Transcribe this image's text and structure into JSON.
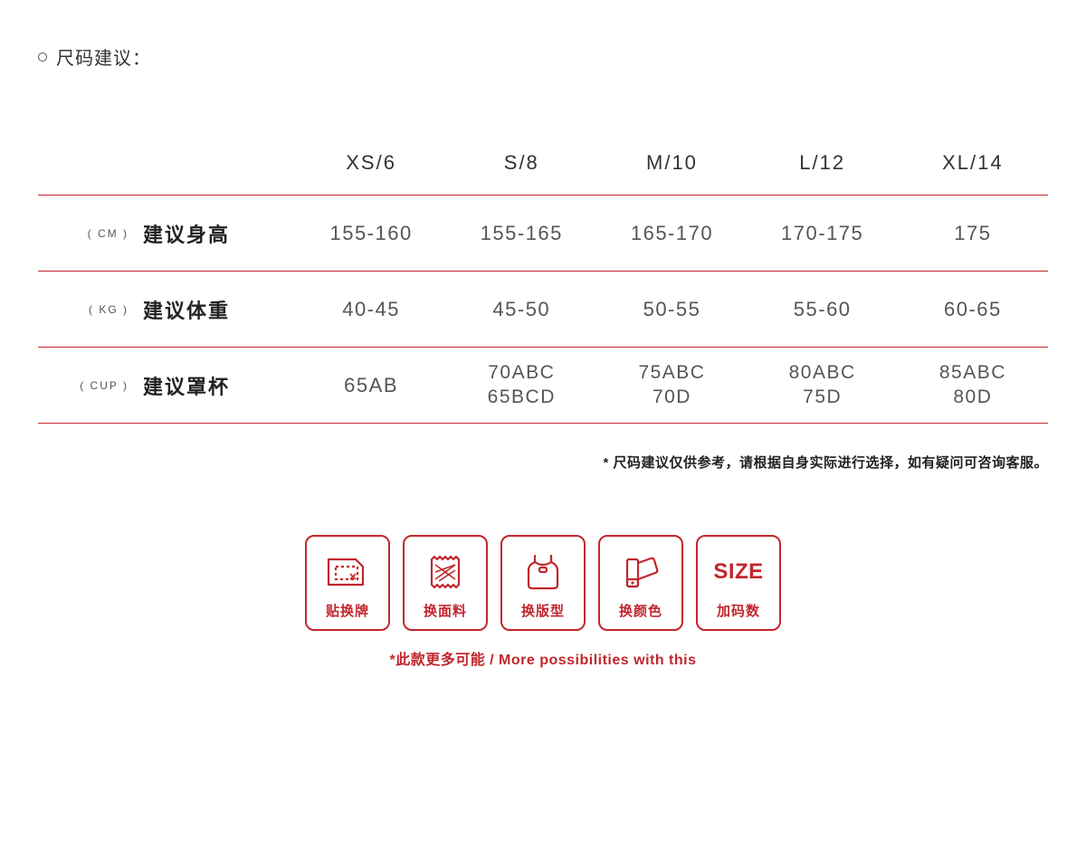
{
  "title": "尺码建议：",
  "accent_color": "#c1272d",
  "background_color": "#ffffff",
  "text_color": "#353535",
  "table": {
    "columns": [
      "XS/6",
      "S/8",
      "M/10",
      "L/12",
      "XL/14"
    ],
    "rows": [
      {
        "unit": "( CM )",
        "label": "建议身高",
        "cells": [
          "155-160",
          "155-165",
          "165-170",
          "170-175",
          "175"
        ]
      },
      {
        "unit": "( KG )",
        "label": "建议体重",
        "cells": [
          "40-45",
          "45-50",
          "50-55",
          "55-60",
          "60-65"
        ]
      },
      {
        "unit": "( CUP )",
        "label": "建议罩杯",
        "cells": [
          "65AB",
          "70ABC\n65BCD",
          "75ABC\n70D",
          "80ABC\n75D",
          "85ABC\n80D"
        ]
      }
    ],
    "border_color": "#c1272d",
    "header_fontsize": 22,
    "cell_fontsize": 22,
    "unit_fontsize": 12,
    "rowlabel_fontsize": 22
  },
  "footnote": "* 尺码建议仅供参考，请根据自身实际进行选择，如有疑问可咨询客服。",
  "badges": [
    {
      "icon": "tag-icon",
      "label": "贴换牌"
    },
    {
      "icon": "fabric-icon",
      "label": "换面料"
    },
    {
      "icon": "tank-icon",
      "label": "换版型"
    },
    {
      "icon": "palette-icon",
      "label": "换颜色"
    },
    {
      "icon": "size-icon",
      "label": "加码数",
      "text": "SIZE"
    }
  ],
  "caption": "*此款更多可能 / More possibilities with this"
}
